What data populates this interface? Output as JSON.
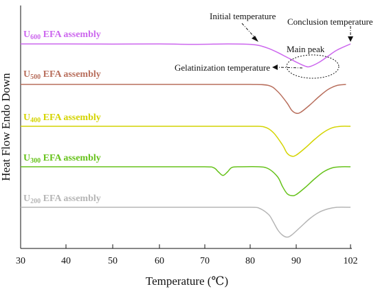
{
  "chart_data": {
    "type": "line",
    "xlabel": "Temperature (℃)",
    "ylabel": "Heat Flow Endo Down",
    "xlim": [
      30,
      102
    ],
    "xticks": [
      "30",
      "40",
      "50",
      "60",
      "70",
      "80",
      "90",
      "102"
    ],
    "tick_values": [
      30,
      40,
      50,
      60,
      70,
      80,
      90,
      102
    ],
    "grid": false,
    "series": [
      {
        "prefix": "U",
        "sub": "600",
        "suffix": " EFA assembly",
        "color": "#cc66ee",
        "x": [
          30,
          40,
          50,
          60,
          68,
          75,
          80,
          82,
          84,
          86,
          88,
          90,
          92,
          93,
          95,
          97,
          99,
          102
        ],
        "y": [
          0,
          0,
          -0.05,
          0,
          -0.2,
          0,
          -0.2,
          -0.8,
          -2.2,
          -4.2,
          -6.5,
          -8.8,
          -10.8,
          -11.0,
          -9.0,
          -6.0,
          -3.0,
          0
        ]
      },
      {
        "prefix": "U",
        "sub": "500",
        "suffix": " EFA assembly",
        "color": "#b86e5c",
        "x": [
          30,
          40,
          50,
          60,
          70,
          80,
          84,
          86,
          88,
          89,
          90,
          91,
          93,
          95,
          97,
          99,
          101
        ],
        "y": [
          0,
          0,
          0,
          0,
          0,
          0,
          -0.5,
          -3.5,
          -9.0,
          -12.5,
          -14.0,
          -13.5,
          -10.0,
          -6.0,
          -2.5,
          -0.5,
          0
        ]
      },
      {
        "prefix": "U",
        "sub": "400",
        "suffix": " EFA assembly",
        "color": "#d4d400",
        "x": [
          30,
          40,
          50,
          60,
          70,
          80,
          83,
          85,
          87,
          88,
          89,
          90,
          92,
          94,
          96,
          98,
          100,
          102
        ],
        "y": [
          0,
          0,
          0,
          0,
          0,
          0,
          -0.3,
          -3.0,
          -9.0,
          -13.0,
          -14.5,
          -14.0,
          -10.5,
          -6.5,
          -3.0,
          -0.7,
          0,
          0
        ]
      },
      {
        "prefix": "U",
        "sub": "300",
        "suffix": " EFA assembly",
        "color": "#66c21a",
        "x": [
          30,
          40,
          50,
          60,
          70,
          72,
          73,
          74,
          75,
          76,
          78,
          82,
          84,
          86,
          87,
          88,
          89,
          90,
          92,
          94,
          96,
          98,
          100,
          102
        ],
        "y": [
          0,
          0,
          0,
          0,
          0,
          -0.5,
          -2.5,
          -4.2,
          -2.5,
          -0.3,
          0,
          0,
          -1.0,
          -5.0,
          -9.5,
          -13.0,
          -14.0,
          -13.5,
          -10.0,
          -6.0,
          -2.5,
          -0.5,
          0,
          0
        ]
      },
      {
        "prefix": "U",
        "sub": "200",
        "suffix": " EFA assembly",
        "color": "#b5b5b5",
        "x": [
          30,
          40,
          50,
          60,
          70,
          80,
          82,
          84,
          85,
          86,
          87,
          88,
          89,
          91,
          93,
          95,
          97,
          99,
          102
        ],
        "y": [
          0,
          0,
          0,
          0,
          0,
          0,
          -0.5,
          -3.5,
          -7.0,
          -11.0,
          -13.5,
          -14.5,
          -13.5,
          -9.5,
          -5.5,
          -2.5,
          -0.8,
          0,
          0
        ]
      }
    ],
    "annotations": {
      "initial": "Initial temperature",
      "conclusion": "Conclusion temperature",
      "main_peak": "Main peak",
      "gelatinization": "Gelatinization temperature"
    },
    "annotation_color": "#e0a090"
  }
}
